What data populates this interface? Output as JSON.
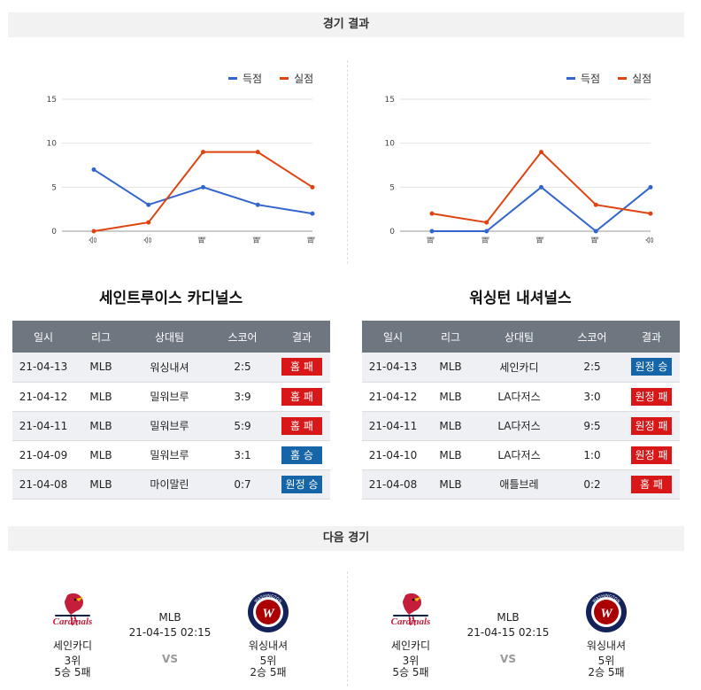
{
  "results_header": "경기 결과",
  "next_header": "다음 경기",
  "legend": {
    "scored": "득점",
    "conceded": "실점"
  },
  "colors": {
    "scored": "#3366cc",
    "conceded": "#dd4411",
    "badge_red": "#d81818",
    "badge_blue": "#1565a8"
  },
  "chart_data": [
    {
      "type": "line",
      "categories": [
        "승",
        "승",
        "패",
        "패",
        "패"
      ],
      "ylim": [
        0,
        15
      ],
      "yticks": [
        0,
        5,
        10,
        15
      ],
      "series": [
        {
          "name": "득점",
          "values": [
            7,
            3,
            5,
            3,
            2
          ]
        },
        {
          "name": "실점",
          "values": [
            0,
            1,
            9,
            9,
            5
          ]
        }
      ]
    },
    {
      "type": "line",
      "categories": [
        "패",
        "패",
        "패",
        "패",
        "승"
      ],
      "ylim": [
        0,
        15
      ],
      "yticks": [
        0,
        5,
        10,
        15
      ],
      "series": [
        {
          "name": "득점",
          "values": [
            0,
            0,
            5,
            0,
            5
          ]
        },
        {
          "name": "실점",
          "values": [
            2,
            1,
            9,
            3,
            2
          ]
        }
      ]
    }
  ],
  "table_headers": [
    "일시",
    "리그",
    "상대팀",
    "스코어",
    "결과"
  ],
  "teams": [
    {
      "title": "세인트루이스 카디널스",
      "rows": [
        {
          "date": "21-04-13",
          "league": "MLB",
          "opponent": "워싱내셔",
          "score": "2:5",
          "result": "홈 패",
          "color": "red"
        },
        {
          "date": "21-04-12",
          "league": "MLB",
          "opponent": "밀워브루",
          "score": "3:9",
          "result": "홈 패",
          "color": "red"
        },
        {
          "date": "21-04-11",
          "league": "MLB",
          "opponent": "밀워브루",
          "score": "5:9",
          "result": "홈 패",
          "color": "red"
        },
        {
          "date": "21-04-09",
          "league": "MLB",
          "opponent": "밀워브루",
          "score": "3:1",
          "result": "홈 승",
          "color": "blue"
        },
        {
          "date": "21-04-08",
          "league": "MLB",
          "opponent": "마이말린",
          "score": "0:7",
          "result": "원정 승",
          "color": "blue"
        }
      ]
    },
    {
      "title": "워싱턴 내셔널스",
      "rows": [
        {
          "date": "21-04-13",
          "league": "MLB",
          "opponent": "세인카디",
          "score": "2:5",
          "result": "원정 승",
          "color": "blue"
        },
        {
          "date": "21-04-12",
          "league": "MLB",
          "opponent": "LA다저스",
          "score": "3:0",
          "result": "원정 패",
          "color": "red"
        },
        {
          "date": "21-04-11",
          "league": "MLB",
          "opponent": "LA다저스",
          "score": "9:5",
          "result": "원정 패",
          "color": "red"
        },
        {
          "date": "21-04-10",
          "league": "MLB",
          "opponent": "LA다저스",
          "score": "1:0",
          "result": "원정 패",
          "color": "red"
        },
        {
          "date": "21-04-08",
          "league": "MLB",
          "opponent": "애틀브레",
          "score": "0:2",
          "result": "홈 패",
          "color": "red"
        }
      ]
    }
  ],
  "next_game": {
    "league": "MLB",
    "datetime": "21-04-15 02:15",
    "vs": "VS",
    "home": {
      "name": "세인카디",
      "rank": "3위",
      "record": "5승 5패",
      "logo_text": "Cardinals"
    },
    "away": {
      "name": "워싱내셔",
      "rank": "5위",
      "record": "2승 5패",
      "logo_text": "WASHINGTON NATIONALS"
    }
  }
}
